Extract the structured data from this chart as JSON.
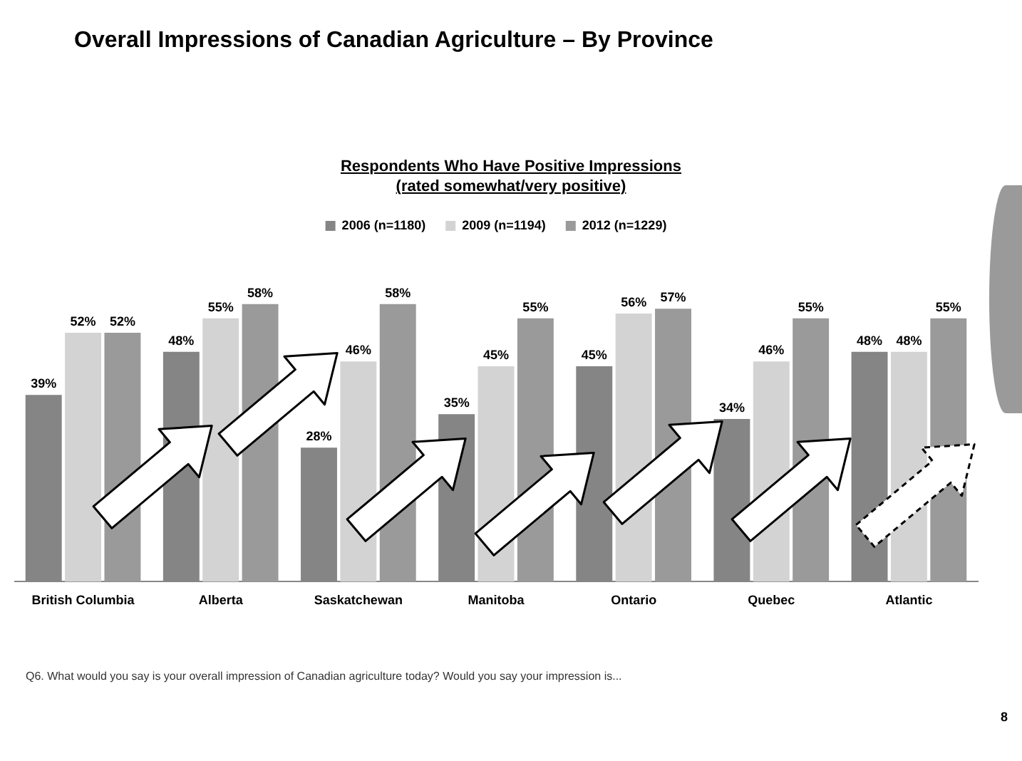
{
  "chart_data": {
    "type": "bar",
    "title": "Overall Impressions of Canadian Agriculture – By Province",
    "subtitle": "Respondents Who Have Positive Impressions\n(rated somewhat/very positive)",
    "categories": [
      "British Columbia",
      "Alberta",
      "Saskatchewan",
      "Manitoba",
      "Ontario",
      "Quebec",
      "Atlantic"
    ],
    "series": [
      {
        "name": "2006 (n=1180)",
        "color": "#858585",
        "values": [
          39,
          48,
          28,
          35,
          45,
          34,
          48
        ],
        "value_labels": [
          "39%",
          "48%",
          "28%",
          "35%",
          "45%",
          "34%",
          "48%"
        ]
      },
      {
        "name": "2009 (n=1194)",
        "color": "#d3d3d3",
        "values": [
          52,
          55,
          46,
          45,
          56,
          46,
          48
        ],
        "value_labels": [
          "52%",
          "55%",
          "46%",
          "45%",
          "56%",
          "46%",
          "48%"
        ]
      },
      {
        "name": "2012 (n=1229)",
        "color": "#9a9a9a",
        "values": [
          52,
          58,
          58,
          55,
          57,
          55,
          55
        ],
        "value_labels": [
          "52%",
          "58%",
          "58%",
          "55%",
          "57%",
          "55%",
          "55%"
        ]
      }
    ],
    "legend": "top",
    "grid": false,
    "annotations": [
      "Q6. What would you say is your overall impression of Canadian agriculture today? Would you say your impression is...",
      "8"
    ]
  }
}
